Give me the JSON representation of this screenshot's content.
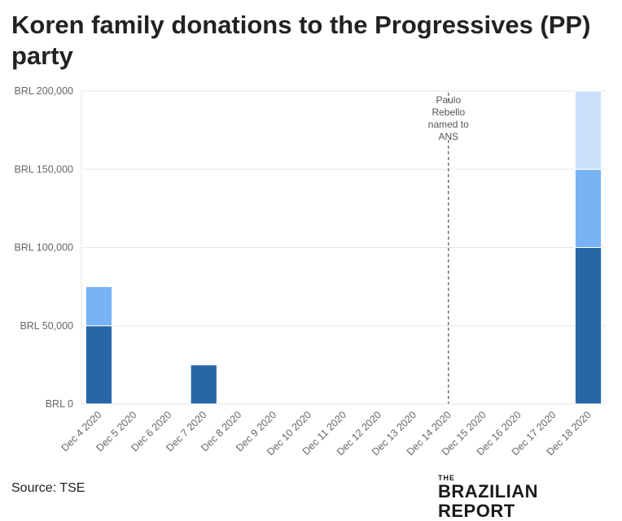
{
  "title": "Koren family donations to the Progressives (PP) party",
  "source": "Source: TSE",
  "brand": {
    "small": "THE",
    "big": "BRAZILIAN REPORT"
  },
  "chart_data": {
    "type": "bar",
    "stacked": true,
    "categories": [
      "Dec 4 2020",
      "Dec 5 2020",
      "Dec 6 2020",
      "Dec 7 2020",
      "Dec 8 2020",
      "Dec 9 2020",
      "Dec 10 2020",
      "Dec 11 2020",
      "Dec 12 2020",
      "Dec 13 2020",
      "Dec 14 2020",
      "Dec 15 2020",
      "Dec 16 2020",
      "Dec 17 2020",
      "Dec 18 2020"
    ],
    "series": [
      {
        "color": "#2767a8",
        "values": [
          50000,
          0,
          0,
          25000,
          0,
          0,
          0,
          0,
          0,
          0,
          0,
          0,
          0,
          0,
          100000
        ]
      },
      {
        "color": "#78b3f5",
        "values": [
          25000,
          0,
          0,
          0,
          0,
          0,
          0,
          0,
          0,
          0,
          0,
          0,
          0,
          0,
          50000
        ]
      },
      {
        "color": "#cde0fb",
        "values": [
          0,
          0,
          0,
          0,
          0,
          0,
          0,
          0,
          0,
          0,
          0,
          0,
          0,
          0,
          50000
        ]
      }
    ],
    "ylim": [
      0,
      200000
    ],
    "yticks": [
      {
        "value": 0,
        "label": "BRL 0"
      },
      {
        "value": 50000,
        "label": "BRL 50,000"
      },
      {
        "value": 100000,
        "label": "BRL 100,000"
      },
      {
        "value": 150000,
        "label": "BRL 150,000"
      },
      {
        "value": 200000,
        "label": "BRL 200,000"
      }
    ],
    "grid": true,
    "annotation": {
      "category": "Dec 14 2020",
      "lines": [
        "Paulo",
        "Rebello",
        "named to",
        "ANS"
      ]
    }
  }
}
